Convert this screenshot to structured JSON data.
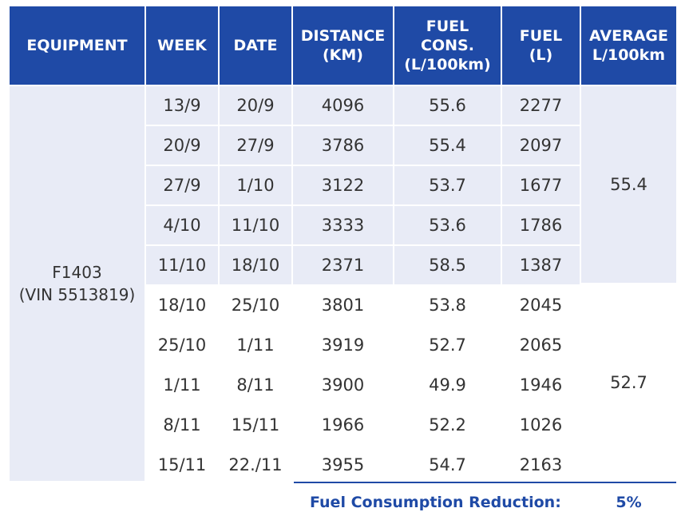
{
  "headers": {
    "equipment": "EQUIPMENT",
    "week": "WEEK",
    "date": "DATE",
    "distance": "DISTANCE\n(KM)",
    "fuel_cons": "FUEL\nCONS.\n(L/100km)",
    "fuel": "FUEL\n(L)",
    "average": "AVERAGE\nL/100km"
  },
  "equipment": "F1403\n(VIN 5513819)",
  "rows": [
    {
      "week": "13/9",
      "date": "20/9",
      "distance": "4096",
      "fuel_cons": "55.6",
      "fuel": "2277"
    },
    {
      "week": "20/9",
      "date": "27/9",
      "distance": "3786",
      "fuel_cons": "55.4",
      "fuel": "2097"
    },
    {
      "week": "27/9",
      "date": "1/10",
      "distance": "3122",
      "fuel_cons": "53.7",
      "fuel": "1677"
    },
    {
      "week": "4/10",
      "date": "11/10",
      "distance": "3333",
      "fuel_cons": "53.6",
      "fuel": "1786"
    },
    {
      "week": "11/10",
      "date": "18/10",
      "distance": "2371",
      "fuel_cons": "58.5",
      "fuel": "1387"
    },
    {
      "week": "18/10",
      "date": "25/10",
      "distance": "3801",
      "fuel_cons": "53.8",
      "fuel": "2045"
    },
    {
      "week": "25/10",
      "date": "1/11",
      "distance": "3919",
      "fuel_cons": "52.7",
      "fuel": "2065"
    },
    {
      "week": "1/11",
      "date": "8/11",
      "distance": "3900",
      "fuel_cons": "49.9",
      "fuel": "1946"
    },
    {
      "week": "8/11",
      "date": "15/11",
      "distance": "1966",
      "fuel_cons": "52.2",
      "fuel": "1026"
    },
    {
      "week": "15/11",
      "date": "22./11",
      "distance": "3955",
      "fuel_cons": "54.7",
      "fuel": "2163"
    }
  ],
  "averages": [
    "55.4",
    "52.7"
  ],
  "footer": {
    "label": "Fuel Consumption Reduction:",
    "value": "5%"
  },
  "colors": {
    "header_bg": "#1f4aa6",
    "shade_bg": "#e8ebf6",
    "footer_text": "#1f4aa6"
  }
}
